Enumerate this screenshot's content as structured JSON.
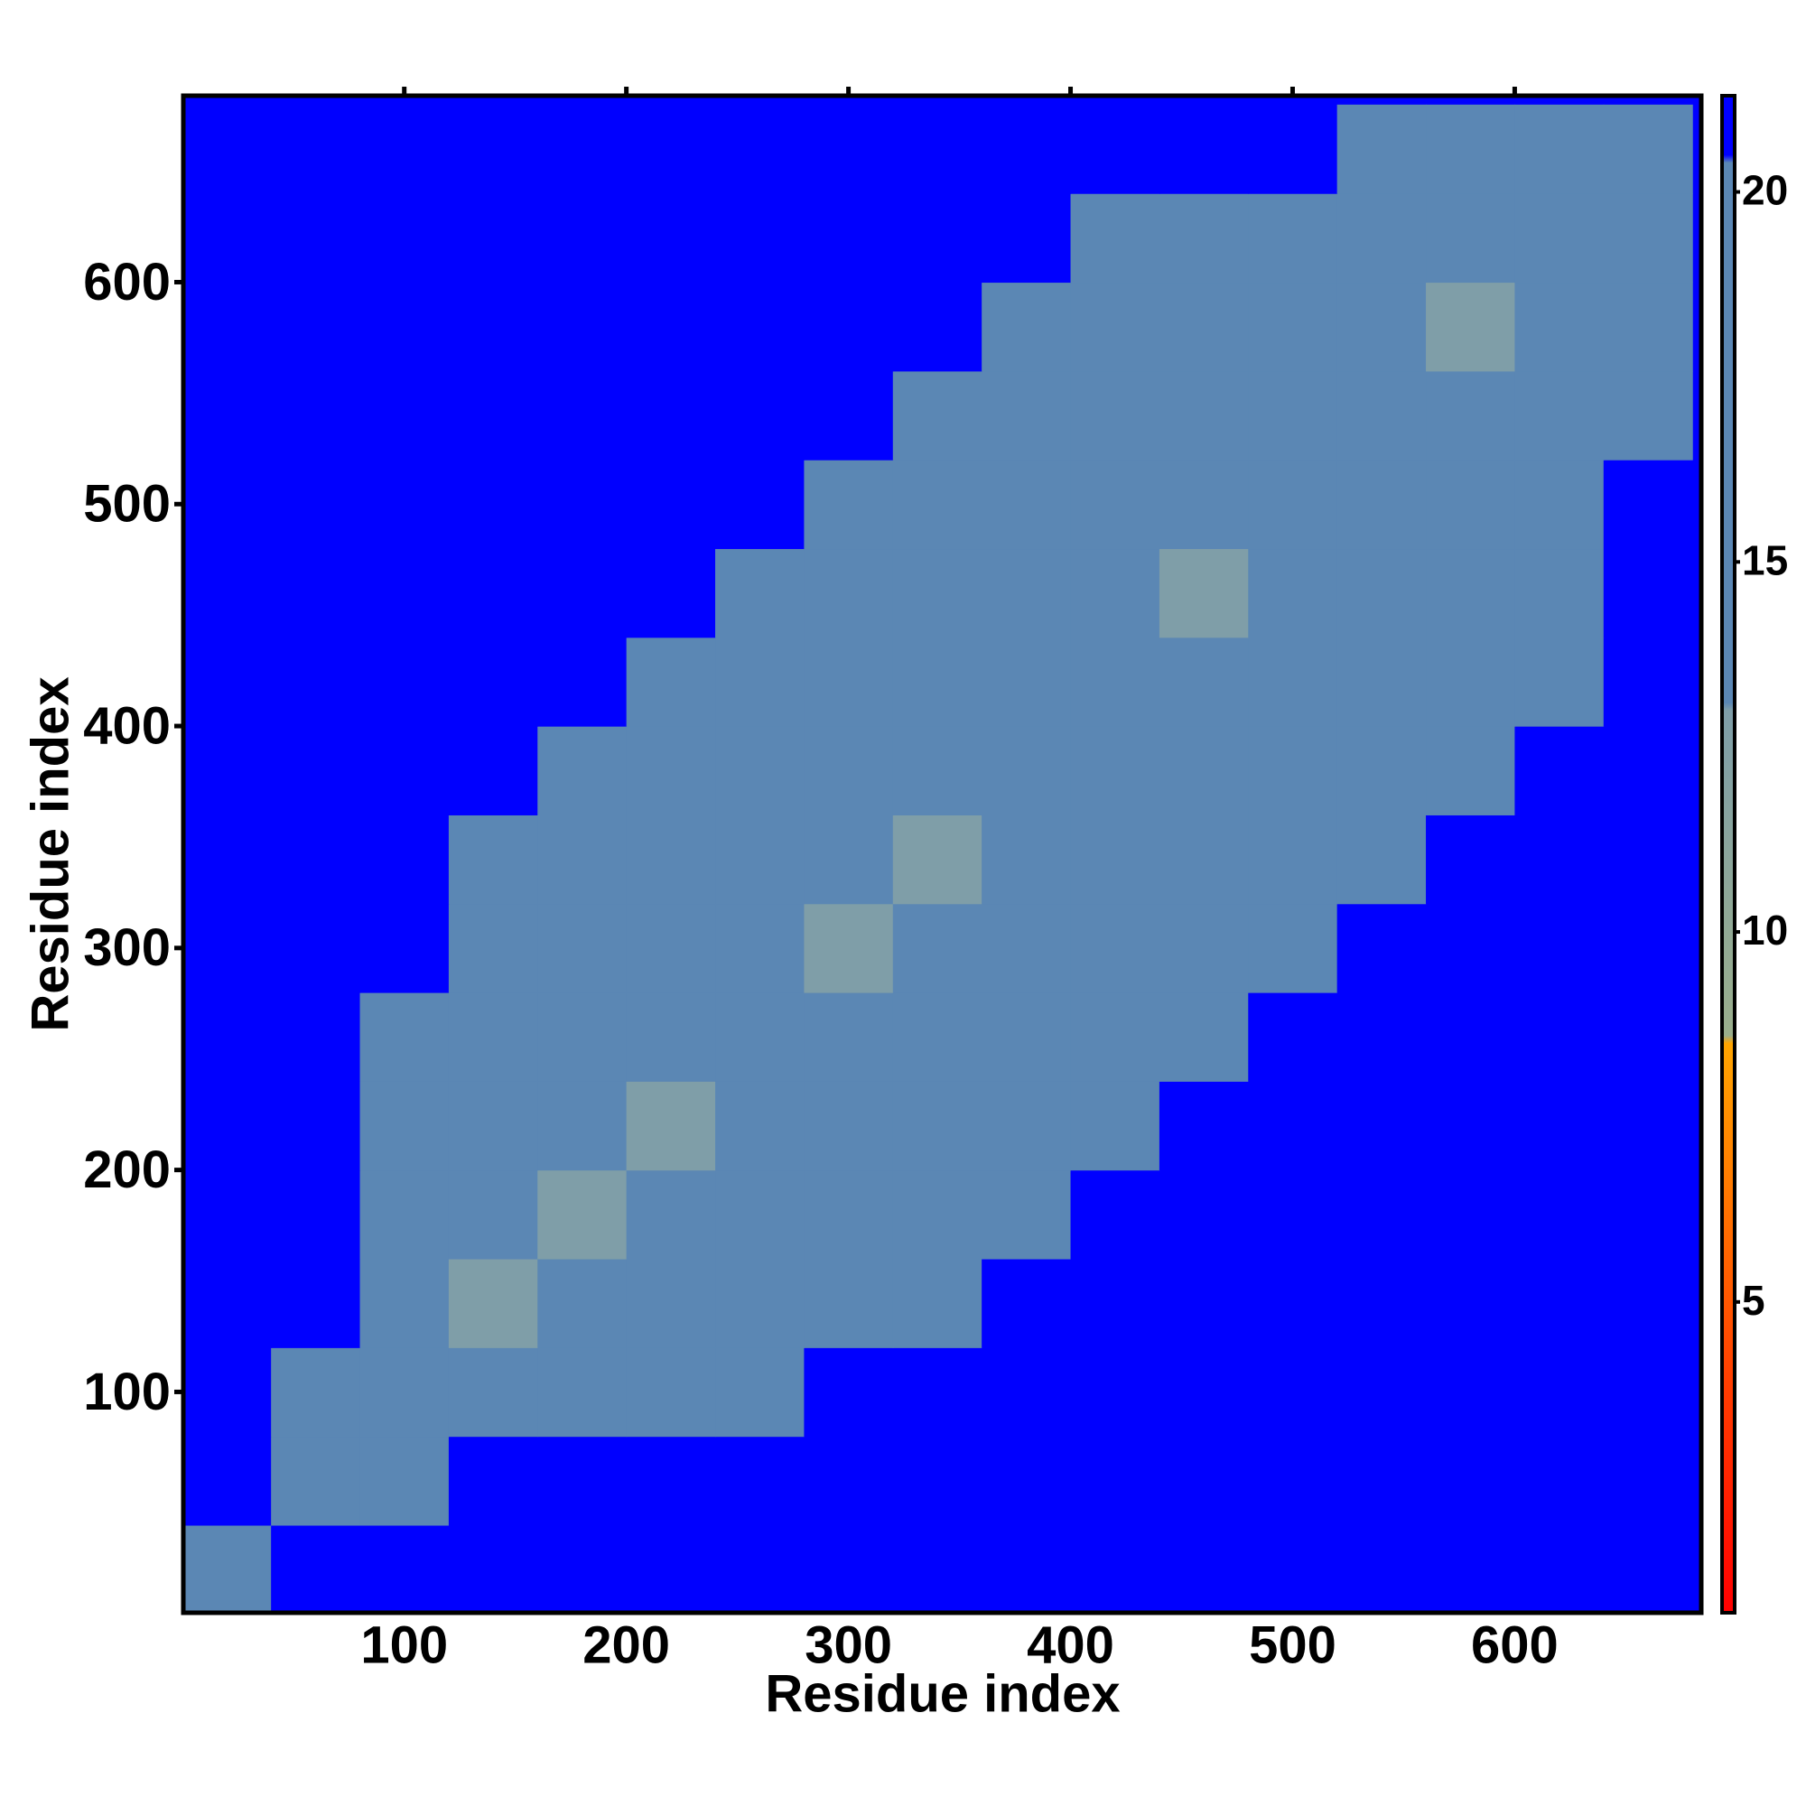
{
  "chart_data": {
    "type": "heatmap",
    "x_label": "Residue index",
    "y_label": "Residue index",
    "xlim": [
      0.5,
      684
    ],
    "ylim": [
      0.5,
      684
    ],
    "xticks": [
      100,
      200,
      300,
      400,
      500,
      600
    ],
    "yticks": [
      100,
      200,
      300,
      400,
      500,
      600
    ],
    "bins": [
      0,
      40,
      80,
      120,
      160,
      200,
      240,
      280,
      320,
      360,
      400,
      440,
      480,
      520,
      560,
      600,
      640,
      680
    ],
    "z": [
      [
        18,
        22,
        22,
        22,
        22,
        22,
        22,
        22,
        22,
        22,
        22,
        22,
        22,
        22,
        22,
        22,
        22
      ],
      [
        22,
        18,
        19,
        22,
        22,
        22,
        22,
        22,
        22,
        22,
        22,
        22,
        22,
        22,
        22,
        22,
        22
      ],
      [
        22,
        19,
        15,
        17,
        18,
        19,
        20,
        21,
        22,
        22,
        22,
        22,
        22,
        22,
        22,
        22,
        22
      ],
      [
        22,
        22,
        17,
        13,
        16,
        17,
        18,
        19,
        20,
        21,
        22,
        22,
        22,
        22,
        22,
        22,
        22
      ],
      [
        22,
        22,
        18,
        16,
        13,
        16,
        17,
        18,
        19,
        20,
        21,
        22,
        22,
        22,
        22,
        22,
        22
      ],
      [
        22,
        22,
        19,
        17,
        16,
        13,
        17,
        18,
        18,
        19,
        20,
        21,
        22,
        22,
        22,
        22,
        22
      ],
      [
        22,
        22,
        20,
        18,
        17,
        17,
        14,
        16,
        17,
        18,
        19,
        20,
        21,
        22,
        22,
        22,
        22
      ],
      [
        22,
        22,
        21,
        19,
        18,
        18,
        16,
        13,
        16,
        18,
        19,
        19,
        20,
        21,
        22,
        22,
        22
      ],
      [
        22,
        22,
        22,
        20,
        19,
        18,
        17,
        16,
        13,
        17,
        18,
        19,
        20,
        20,
        21,
        22,
        22
      ],
      [
        22,
        22,
        22,
        21,
        20,
        19,
        18,
        18,
        17,
        14,
        16,
        17,
        18,
        19,
        20,
        21,
        22
      ],
      [
        22,
        22,
        22,
        22,
        21,
        20,
        19,
        19,
        18,
        16,
        14,
        16,
        17,
        19,
        19,
        20,
        22
      ],
      [
        22,
        22,
        22,
        22,
        22,
        21,
        20,
        19,
        19,
        17,
        16,
        13,
        16,
        18,
        19,
        19,
        22
      ],
      [
        22,
        22,
        22,
        22,
        22,
        22,
        21,
        20,
        20,
        18,
        17,
        16,
        14,
        17,
        18,
        19,
        21
      ],
      [
        22,
        22,
        22,
        22,
        22,
        22,
        22,
        21,
        20,
        19,
        19,
        18,
        17,
        14,
        16,
        17,
        20
      ],
      [
        22,
        22,
        22,
        22,
        22,
        22,
        22,
        22,
        21,
        20,
        19,
        19,
        18,
        16,
        13,
        16,
        20
      ],
      [
        22,
        22,
        22,
        22,
        22,
        22,
        22,
        22,
        22,
        21,
        20,
        19,
        19,
        17,
        16,
        14,
        19
      ],
      [
        22,
        22,
        22,
        22,
        22,
        22,
        22,
        22,
        22,
        22,
        22,
        22,
        21,
        20,
        20,
        19,
        19
      ]
    ],
    "colorscale": [
      {
        "value": 0.8,
        "color": "#ff0000"
      },
      {
        "value": 4,
        "color": "#ff4000"
      },
      {
        "value": 8.5,
        "color": "#ffa500"
      },
      {
        "value": 8.6,
        "color": "#9aae8c"
      },
      {
        "value": 13,
        "color": "#7f9ea8"
      },
      {
        "value": 13.1,
        "color": "#5b87b4"
      },
      {
        "value": 20.4,
        "color": "#5b87b4"
      },
      {
        "value": 20.5,
        "color": "#0000ff"
      },
      {
        "value": 21.3,
        "color": "#0000ff"
      }
    ],
    "clim": [
      0.8,
      21.3
    ],
    "cticks": [
      5,
      10,
      15,
      20
    ]
  }
}
